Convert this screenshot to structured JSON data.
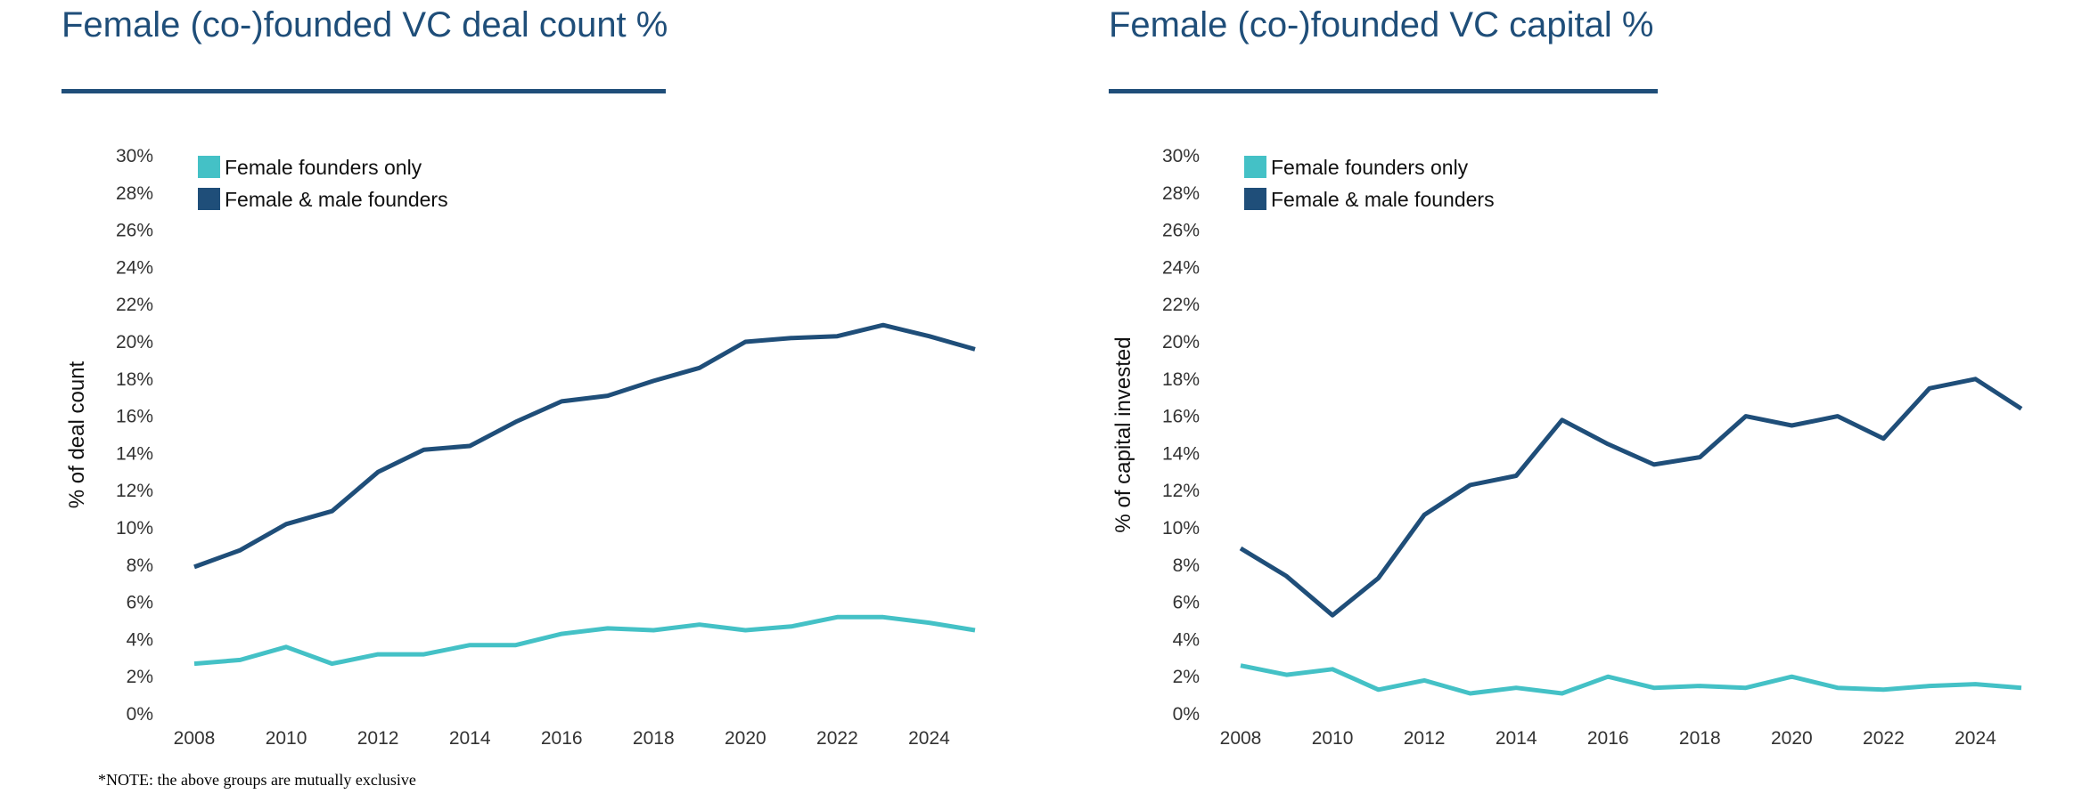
{
  "chart_data": [
    {
      "type": "line",
      "title": "Female (co-)founded VC deal count %",
      "xlabel": "",
      "ylabel": "% of deal count",
      "x": [
        2008,
        2009,
        2010,
        2011,
        2012,
        2013,
        2014,
        2015,
        2016,
        2017,
        2018,
        2019,
        2020,
        2021,
        2022,
        2023,
        2024,
        2025
      ],
      "x_ticks": [
        "2008",
        "2010",
        "2012",
        "2014",
        "2016",
        "2018",
        "2020",
        "2022",
        "2024"
      ],
      "ylim": [
        0,
        30
      ],
      "y_ticks": [
        "0%",
        "2%",
        "4%",
        "6%",
        "8%",
        "10%",
        "12%",
        "14%",
        "16%",
        "18%",
        "20%",
        "22%",
        "24%",
        "26%",
        "28%",
        "30%"
      ],
      "grid": false,
      "legend": "top-left",
      "series": [
        {
          "name": "Female founders only",
          "color": "#44c1c6",
          "values": [
            2.7,
            2.9,
            3.6,
            2.7,
            3.2,
            3.2,
            3.7,
            3.7,
            4.3,
            4.6,
            4.5,
            4.8,
            4.5,
            4.7,
            5.2,
            5.2,
            4.9,
            4.5
          ]
        },
        {
          "name": "Female & male founders",
          "color": "#1f4e79",
          "values": [
            7.9,
            8.8,
            10.2,
            10.9,
            13.0,
            14.2,
            14.4,
            15.7,
            16.8,
            17.1,
            17.9,
            18.6,
            20.0,
            20.2,
            20.3,
            20.9,
            20.3,
            19.6
          ]
        }
      ]
    },
    {
      "type": "line",
      "title": "Female (co-)founded VC capital %",
      "xlabel": "",
      "ylabel": "% of capital invested",
      "x": [
        2008,
        2009,
        2010,
        2011,
        2012,
        2013,
        2014,
        2015,
        2016,
        2017,
        2018,
        2019,
        2020,
        2021,
        2022,
        2023,
        2024,
        2025
      ],
      "x_ticks": [
        "2008",
        "2010",
        "2012",
        "2014",
        "2016",
        "2018",
        "2020",
        "2022",
        "2024"
      ],
      "ylim": [
        0,
        30
      ],
      "y_ticks": [
        "0%",
        "2%",
        "4%",
        "6%",
        "8%",
        "10%",
        "12%",
        "14%",
        "16%",
        "18%",
        "20%",
        "22%",
        "24%",
        "26%",
        "28%",
        "30%"
      ],
      "grid": false,
      "legend": "top-left",
      "series": [
        {
          "name": "Female founders only",
          "color": "#44c1c6",
          "values": [
            2.6,
            2.1,
            2.4,
            1.3,
            1.8,
            1.1,
            1.4,
            1.1,
            2.0,
            1.4,
            1.5,
            1.4,
            2.0,
            1.4,
            1.3,
            1.5,
            1.6,
            1.4
          ]
        },
        {
          "name": "Female & male founders",
          "color": "#1f4e79",
          "values": [
            8.9,
            7.4,
            5.3,
            7.3,
            10.7,
            12.3,
            12.8,
            15.8,
            14.5,
            13.4,
            13.8,
            16.0,
            15.5,
            16.0,
            14.8,
            17.5,
            18.0,
            16.4
          ]
        }
      ]
    }
  ],
  "note": "*NOTE: the above groups are mutually exclusive"
}
